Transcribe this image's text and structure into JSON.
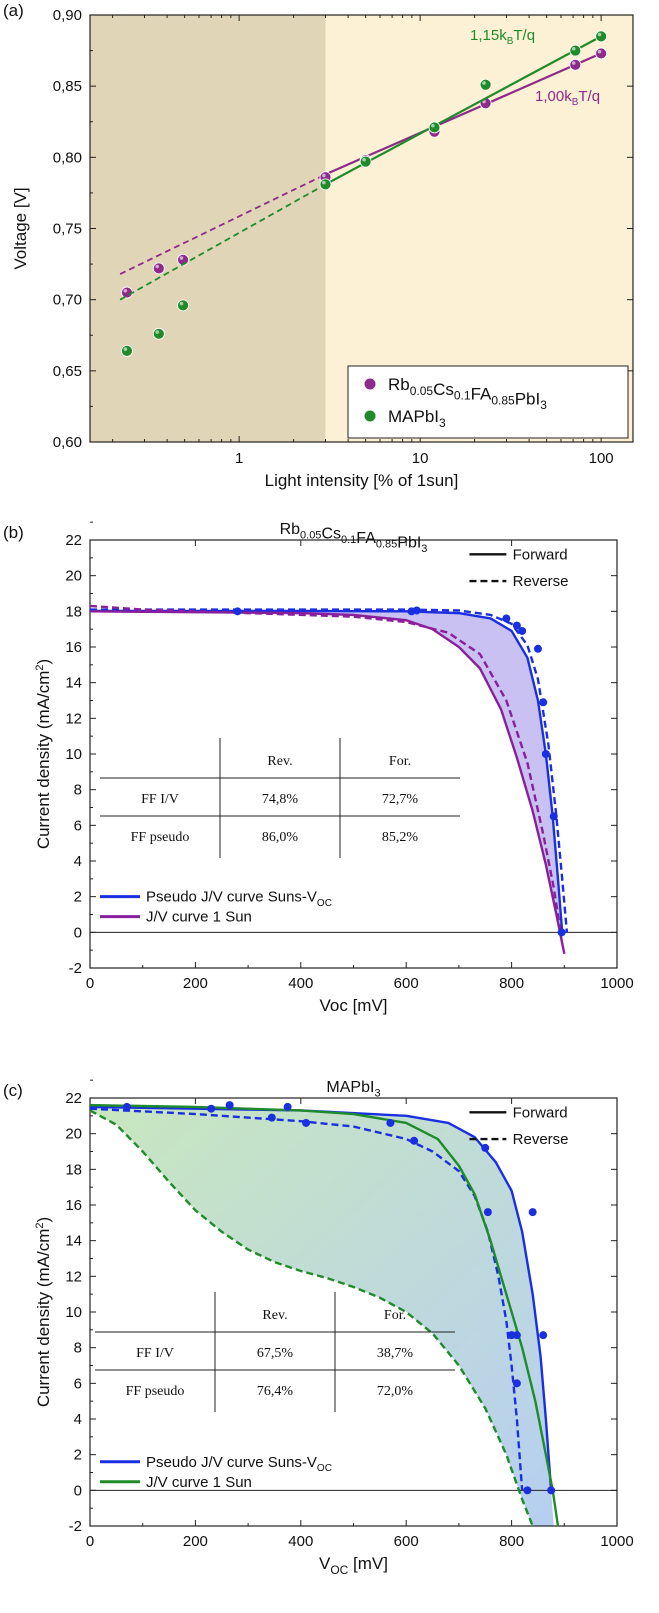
{
  "chart_data": [
    {
      "panel_label": "(a)",
      "type": "scatter",
      "xlabel": "Light intensity [% of 1sun]",
      "ylabel": "Voltage [V]",
      "xscale": "log",
      "xlim": [
        0.15,
        150
      ],
      "ylim": [
        0.6,
        0.9
      ],
      "x_ticks": [
        1,
        10,
        100
      ],
      "x_tick_labels": [
        "1",
        "10",
        "100"
      ],
      "y_ticks": [
        0.6,
        0.65,
        0.7,
        0.75,
        0.8,
        0.85,
        0.9
      ],
      "y_tick_labels": [
        "0,60",
        "0,65",
        "0,70",
        "0,75",
        "0,80",
        "0,85",
        "0,90"
      ],
      "shaded_regions": [
        {
          "x": [
            0.15,
            3
          ],
          "color": "#e0d6b7"
        },
        {
          "x": [
            3,
            150
          ],
          "color": "#fcf1d4"
        }
      ],
      "series": [
        {
          "name": "Rb0.05Cs0.1FA0.85PbI3",
          "color": "#8e2a8a",
          "points": [
            [
              0.24,
              0.705
            ],
            [
              0.36,
              0.722
            ],
            [
              0.49,
              0.728
            ],
            [
              3,
              0.786
            ],
            [
              5,
              0.798
            ],
            [
              12,
              0.818
            ],
            [
              23,
              0.838
            ],
            [
              72,
              0.865
            ],
            [
              100,
              0.873
            ]
          ],
          "fit_label": "1,00kBT/q",
          "fit_solid": [
            [
              3,
              0.788
            ],
            [
              100,
              0.873
            ]
          ],
          "fit_dashed": [
            [
              0.22,
              0.718
            ],
            [
              3,
              0.788
            ]
          ]
        },
        {
          "name": "MAPbI3",
          "color": "#1f8b2a",
          "points": [
            [
              0.24,
              0.664
            ],
            [
              0.36,
              0.676
            ],
            [
              0.49,
              0.696
            ],
            [
              3,
              0.781
            ],
            [
              5,
              0.797
            ],
            [
              12,
              0.821
            ],
            [
              23,
              0.851
            ],
            [
              72,
              0.875
            ],
            [
              100,
              0.885
            ]
          ],
          "fit_label": "1,15kBT/q",
          "fit_solid": [
            [
              3,
              0.781
            ],
            [
              100,
              0.885
            ]
          ],
          "fit_dashed": [
            [
              0.22,
              0.7
            ],
            [
              3,
              0.781
            ]
          ]
        }
      ],
      "legend_position": "bottom-right"
    },
    {
      "panel_label": "(b)",
      "type": "line",
      "title": "Rb0.05Cs0.1FA0.85PbI3",
      "xlabel": "Voc [mV]",
      "ylabel": "Current density (mA/cm²)",
      "xlim": [
        0,
        1000
      ],
      "ylim": [
        -2,
        22
      ],
      "x_ticks": [
        0,
        200,
        400,
        600,
        800,
        1000
      ],
      "y_ticks": [
        -2,
        0,
        2,
        4,
        6,
        8,
        10,
        12,
        14,
        16,
        18,
        20,
        22
      ],
      "style_legend": {
        "solid": "Forward",
        "dashed": "Reverse"
      },
      "legend": [
        "Pseudo J/V curve Suns-VOC",
        "J/V curve 1 Sun"
      ],
      "series": [
        {
          "name": "Pseudo J/V curve Suns-VOC",
          "style": "solid",
          "color": "#1a2fe0",
          "x": [
            0,
            200,
            400,
            600,
            700,
            760,
            800,
            830,
            850,
            865,
            878,
            888,
            896
          ],
          "y": [
            18.02,
            18.02,
            18.02,
            18.0,
            17.9,
            17.6,
            16.9,
            15.4,
            13.0,
            10.0,
            6.5,
            3.0,
            0.0
          ]
        },
        {
          "name": "Pseudo J/V curve Suns-VOC",
          "style": "dashed",
          "color": "#1a2fe0",
          "x": [
            0,
            200,
            400,
            600,
            700,
            760,
            800,
            830,
            850,
            870,
            885,
            896,
            905
          ],
          "y": [
            18.1,
            18.1,
            18.1,
            18.1,
            18.05,
            17.8,
            17.3,
            16.1,
            14.2,
            10.5,
            6.5,
            3.0,
            0.0
          ]
        },
        {
          "name": "J/V curve 1 Sun",
          "style": "solid",
          "color": "#8a1f9c",
          "x": [
            0,
            200,
            400,
            500,
            600,
            650,
            700,
            740,
            780,
            810,
            840,
            865,
            885,
            900
          ],
          "y": [
            18.0,
            17.95,
            17.9,
            17.8,
            17.5,
            17.0,
            16.0,
            14.8,
            12.5,
            9.8,
            6.8,
            3.8,
            1.0,
            -1.2
          ]
        },
        {
          "name": "J/V curve 1 Sun",
          "style": "dashed",
          "color": "#8a1f9c",
          "x": [
            0,
            100,
            300,
            500,
            600,
            680,
            740,
            790,
            830,
            860,
            880,
            893
          ],
          "y": [
            18.3,
            18.1,
            17.9,
            17.7,
            17.4,
            16.8,
            15.6,
            13.0,
            9.5,
            5.5,
            2.5,
            0.0
          ]
        }
      ],
      "markers": {
        "color": "#1a2fe0",
        "x": [
          280,
          610,
          620,
          790,
          810,
          820,
          850,
          860,
          865,
          880,
          895
        ],
        "y": [
          18.0,
          18.0,
          18.05,
          17.6,
          17.2,
          16.9,
          15.9,
          12.9,
          10.0,
          6.5,
          0.0
        ]
      },
      "table": {
        "headers": [
          "",
          "Rev.",
          "For."
        ],
        "rows": [
          [
            "FF I/V",
            "74,8%",
            "72,7%"
          ],
          [
            "FF pseudo",
            "86,0%",
            "85,2%"
          ]
        ]
      }
    },
    {
      "panel_label": "(c)",
      "type": "line",
      "title": "MAPbI3",
      "xlabel": "VOC [mV]",
      "ylabel": "Current density (mA/cm²)",
      "xlim": [
        0,
        1000
      ],
      "ylim": [
        -2,
        22
      ],
      "x_ticks": [
        0,
        200,
        400,
        600,
        800,
        1000
      ],
      "y_ticks": [
        -2,
        0,
        2,
        4,
        6,
        8,
        10,
        12,
        14,
        16,
        18,
        20,
        22
      ],
      "style_legend": {
        "solid": "Forward",
        "dashed": "Reverse"
      },
      "legend": [
        "Pseudo J/V curve Suns-VOC",
        "J/V curve 1 Sun"
      ],
      "series": [
        {
          "name": "Pseudo J/V curve Suns-VOC",
          "style": "solid",
          "color": "#1a2fe0",
          "x": [
            0,
            200,
            400,
            600,
            680,
            730,
            770,
            800,
            820,
            840,
            855,
            865,
            875
          ],
          "y": [
            21.5,
            21.4,
            21.3,
            21.0,
            20.6,
            19.8,
            18.4,
            16.8,
            14.5,
            11.0,
            7.5,
            4.0,
            0.0
          ]
        },
        {
          "name": "Pseudo J/V curve Suns-VOC",
          "style": "dashed",
          "color": "#1a2fe0",
          "x": [
            0,
            200,
            400,
            500,
            600,
            650,
            700,
            730,
            755,
            775,
            790,
            800,
            810,
            820
          ],
          "y": [
            21.4,
            21.1,
            20.7,
            20.4,
            19.7,
            19.0,
            17.9,
            16.5,
            14.5,
            12.0,
            9.5,
            7.0,
            4.0,
            0.0
          ]
        },
        {
          "name": "J/V curve 1 Sun",
          "style": "solid",
          "color": "#1f8b2a",
          "x": [
            0,
            200,
            400,
            500,
            600,
            660,
            700,
            730,
            760,
            790,
            820,
            845,
            865,
            878,
            888
          ],
          "y": [
            21.6,
            21.5,
            21.3,
            21.1,
            20.6,
            19.7,
            18.2,
            16.6,
            14.0,
            11.0,
            8.0,
            5.0,
            2.0,
            0.0,
            -2.0
          ]
        },
        {
          "name": "J/V curve 1 Sun",
          "style": "dashed",
          "color": "#1f8b2a",
          "x": [
            0,
            50,
            100,
            150,
            200,
            250,
            300,
            350,
            400,
            450,
            500,
            550,
            600,
            650,
            700,
            750,
            790,
            820,
            840
          ],
          "y": [
            21.3,
            20.5,
            19.0,
            17.3,
            15.7,
            14.5,
            13.5,
            12.8,
            12.3,
            11.9,
            11.4,
            10.8,
            10.0,
            8.8,
            7.0,
            4.6,
            2.0,
            -0.5,
            -2.0
          ]
        }
      ],
      "markers": {
        "color": "#1a2fe0",
        "x": [
          70,
          230,
          265,
          345,
          375,
          410,
          570,
          615,
          750,
          755,
          800,
          810,
          810,
          830,
          840,
          860,
          875
        ],
        "y": [
          21.5,
          21.4,
          21.6,
          20.9,
          21.5,
          20.6,
          20.6,
          19.6,
          19.2,
          15.6,
          8.7,
          8.7,
          6.0,
          0.0,
          15.6,
          8.7,
          0.0
        ]
      },
      "table": {
        "headers": [
          "",
          "Rev.",
          "For."
        ],
        "rows": [
          [
            "FF I/V",
            "67,5%",
            "38,7%"
          ],
          [
            "FF pseudo",
            "76,4%",
            "72,0%"
          ]
        ]
      }
    }
  ]
}
